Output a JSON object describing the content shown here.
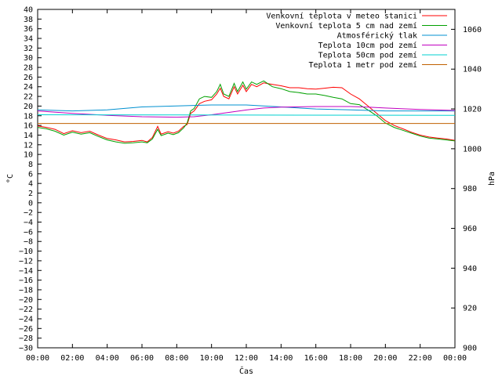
{
  "chart_data": {
    "type": "line",
    "xlabel": "Čas",
    "ylabel": "°C",
    "y2label": "hPa",
    "x_ticks": [
      "00:00",
      "02:00",
      "04:00",
      "06:00",
      "08:00",
      "10:00",
      "12:00",
      "14:00",
      "16:00",
      "18:00",
      "20:00",
      "22:00",
      "00:00"
    ],
    "xlim": [
      0,
      24
    ],
    "ylim": [
      -30,
      40
    ],
    "y_tick_step": 2,
    "y2lim": [
      900,
      1070
    ],
    "y2_ticks": [
      900,
      920,
      940,
      960,
      980,
      1000,
      1020,
      1040,
      1060
    ],
    "grid": false,
    "legend_position": "top-right",
    "series": [
      {
        "name": "Venkovní teplota v meteo stanici",
        "color": "#ff0000",
        "axis": "left",
        "points": [
          [
            0,
            15.9
          ],
          [
            0.5,
            15.6
          ],
          [
            1,
            15.2
          ],
          [
            1.5,
            14.3
          ],
          [
            2,
            14.9
          ],
          [
            2.5,
            14.5
          ],
          [
            3,
            14.8
          ],
          [
            3.5,
            14.0
          ],
          [
            4,
            13.3
          ],
          [
            4.5,
            13.0
          ],
          [
            5,
            12.6
          ],
          [
            5.5,
            12.7
          ],
          [
            6,
            12.9
          ],
          [
            6.3,
            12.6
          ],
          [
            6.6,
            13.5
          ],
          [
            6.9,
            15.8
          ],
          [
            7.1,
            14.2
          ],
          [
            7.5,
            14.7
          ],
          [
            7.8,
            14.4
          ],
          [
            8.1,
            14.8
          ],
          [
            8.4,
            15.8
          ],
          [
            8.6,
            16.2
          ],
          [
            8.8,
            18.5
          ],
          [
            9,
            19.0
          ],
          [
            9.3,
            20.5
          ],
          [
            9.6,
            21.0
          ],
          [
            10,
            21.3
          ],
          [
            10.3,
            22.5
          ],
          [
            10.5,
            23.7
          ],
          [
            10.7,
            22.0
          ],
          [
            11,
            21.5
          ],
          [
            11.3,
            24.0
          ],
          [
            11.5,
            22.5
          ],
          [
            11.8,
            24.3
          ],
          [
            12,
            23.0
          ],
          [
            12.3,
            24.5
          ],
          [
            12.6,
            24.0
          ],
          [
            13,
            24.8
          ],
          [
            13.5,
            24.5
          ],
          [
            14,
            24.2
          ],
          [
            14.5,
            23.8
          ],
          [
            15,
            23.8
          ],
          [
            15.5,
            23.6
          ],
          [
            16,
            23.5
          ],
          [
            16.5,
            23.7
          ],
          [
            17,
            23.9
          ],
          [
            17.5,
            23.8
          ],
          [
            18,
            22.5
          ],
          [
            18.5,
            21.5
          ],
          [
            19,
            20.0
          ],
          [
            19.5,
            18.5
          ],
          [
            20,
            17.0
          ],
          [
            20.5,
            16.0
          ],
          [
            21,
            15.3
          ],
          [
            21.5,
            14.6
          ],
          [
            22,
            14.0
          ],
          [
            22.5,
            13.6
          ],
          [
            23,
            13.4
          ],
          [
            23.5,
            13.2
          ],
          [
            24,
            12.9
          ]
        ]
      },
      {
        "name": "Venkovní teplota 5 cm nad zemí",
        "color": "#00a000",
        "axis": "left",
        "points": [
          [
            0,
            15.6
          ],
          [
            0.5,
            15.3
          ],
          [
            1,
            14.8
          ],
          [
            1.5,
            14.0
          ],
          [
            2,
            14.6
          ],
          [
            2.5,
            14.2
          ],
          [
            3,
            14.5
          ],
          [
            3.5,
            13.7
          ],
          [
            4,
            13.0
          ],
          [
            4.5,
            12.6
          ],
          [
            5,
            12.3
          ],
          [
            5.5,
            12.4
          ],
          [
            6,
            12.6
          ],
          [
            6.3,
            12.4
          ],
          [
            6.6,
            13.2
          ],
          [
            6.9,
            15.2
          ],
          [
            7.1,
            13.9
          ],
          [
            7.5,
            14.4
          ],
          [
            7.8,
            14.1
          ],
          [
            8.1,
            14.5
          ],
          [
            8.4,
            15.5
          ],
          [
            8.6,
            16.5
          ],
          [
            8.8,
            19.0
          ],
          [
            9,
            19.5
          ],
          [
            9.3,
            21.5
          ],
          [
            9.6,
            22.0
          ],
          [
            10,
            21.8
          ],
          [
            10.3,
            23.0
          ],
          [
            10.5,
            24.5
          ],
          [
            10.7,
            22.5
          ],
          [
            11,
            22.0
          ],
          [
            11.3,
            24.7
          ],
          [
            11.5,
            23.0
          ],
          [
            11.8,
            25.0
          ],
          [
            12,
            23.5
          ],
          [
            12.3,
            25.0
          ],
          [
            12.6,
            24.5
          ],
          [
            13,
            25.2
          ],
          [
            13.5,
            24.0
          ],
          [
            14,
            23.6
          ],
          [
            14.5,
            23.0
          ],
          [
            15,
            22.8
          ],
          [
            15.5,
            22.5
          ],
          [
            16,
            22.5
          ],
          [
            16.5,
            22.2
          ],
          [
            17,
            21.8
          ],
          [
            17.5,
            21.5
          ],
          [
            18,
            20.5
          ],
          [
            18.5,
            20.3
          ],
          [
            19,
            19.2
          ],
          [
            19.5,
            18.0
          ],
          [
            20,
            16.5
          ],
          [
            20.5,
            15.6
          ],
          [
            21,
            15.0
          ],
          [
            21.5,
            14.4
          ],
          [
            22,
            13.8
          ],
          [
            22.5,
            13.4
          ],
          [
            23,
            13.2
          ],
          [
            23.5,
            13.0
          ],
          [
            24,
            12.8
          ]
        ]
      },
      {
        "name": "Atmosférický tlak",
        "color": "#0090d0",
        "axis": "right",
        "points": [
          [
            0,
            1019.5
          ],
          [
            2,
            1019.0
          ],
          [
            4,
            1019.5
          ],
          [
            6,
            1021.0
          ],
          [
            8,
            1021.5
          ],
          [
            10,
            1022.0
          ],
          [
            12,
            1022.0
          ],
          [
            14,
            1021.0
          ],
          [
            16,
            1020.0
          ],
          [
            18,
            1019.5
          ],
          [
            20,
            1019.0
          ],
          [
            22,
            1019.0
          ],
          [
            24,
            1019.0
          ]
        ]
      },
      {
        "name": "Teplota 10cm pod zemí",
        "color": "#c000c0",
        "axis": "left",
        "points": [
          [
            0,
            19.0
          ],
          [
            2,
            18.5
          ],
          [
            4,
            18.1
          ],
          [
            6,
            17.8
          ],
          [
            8,
            17.7
          ],
          [
            9,
            17.8
          ],
          [
            10,
            18.2
          ],
          [
            11,
            18.7
          ],
          [
            12,
            19.2
          ],
          [
            13,
            19.6
          ],
          [
            14,
            19.8
          ],
          [
            16,
            19.9
          ],
          [
            18,
            19.9
          ],
          [
            19,
            19.8
          ],
          [
            20,
            19.6
          ],
          [
            22,
            19.3
          ],
          [
            24,
            19.1
          ]
        ]
      },
      {
        "name": "Teplota 50cm pod zemí",
        "color": "#00d0d0",
        "axis": "left",
        "points": [
          [
            0,
            18.2
          ],
          [
            24,
            18.1
          ]
        ]
      },
      {
        "name": "Teplota 1 metr pod zemí",
        "color": "#c06000",
        "axis": "left",
        "points": [
          [
            0,
            16.4
          ],
          [
            24,
            16.4
          ]
        ]
      }
    ]
  }
}
